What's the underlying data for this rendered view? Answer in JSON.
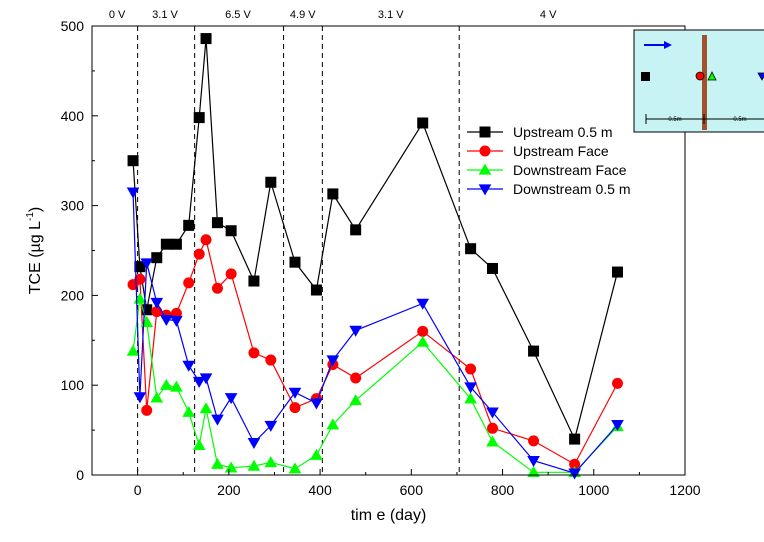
{
  "chart_data": {
    "type": "line",
    "title": "",
    "xlabel": "tim e (day)",
    "ylabel_main": "TCE (µg L",
    "ylabel_sup": "-1",
    "ylabel_tail": ")",
    "xlim": [
      -100,
      1200
    ],
    "ylim": [
      0,
      500
    ],
    "xticks": [
      "0",
      "200",
      "400",
      "600",
      "800",
      "1000",
      "1200"
    ],
    "yticks": [
      "0",
      "100",
      "200",
      "300",
      "400",
      "500"
    ],
    "grid": false,
    "legend_position": "right",
    "voltage_boundaries": [
      0,
      125,
      320,
      405,
      705
    ],
    "voltage_labels": [
      {
        "text": "0 V",
        "x": -45
      },
      {
        "text": "3.1 V",
        "x": 60
      },
      {
        "text": "6.5 V",
        "x": 220
      },
      {
        "text": "4.9 V",
        "x": 362
      },
      {
        "text": "3.1 V",
        "x": 555
      },
      {
        "text": "4 V",
        "x": 900
      }
    ],
    "series": [
      {
        "name": "Upstream 0.5 m",
        "color": "#000000",
        "marker": "square",
        "x": [
          -10,
          5,
          20,
          42,
          63,
          85,
          112,
          135,
          150,
          175,
          205,
          255,
          292,
          345,
          392,
          428,
          478,
          625,
          730,
          778,
          868,
          958,
          1052
        ],
        "y": [
          350,
          232,
          184,
          242,
          257,
          257,
          278,
          398,
          486,
          281,
          272,
          216,
          326,
          237,
          206,
          313,
          273,
          392,
          252,
          230,
          138,
          40,
          226
        ]
      },
      {
        "name": "Upstream Face",
        "color": "#ff0000",
        "marker": "circle",
        "x": [
          -10,
          5,
          20,
          42,
          63,
          85,
          112,
          135,
          150,
          175,
          205,
          255,
          292,
          345,
          392,
          428,
          478,
          625,
          730,
          778,
          868,
          958,
          1052
        ],
        "y": [
          212,
          218,
          72,
          182,
          178,
          180,
          214,
          246,
          262,
          208,
          224,
          136,
          128,
          75,
          85,
          123,
          108,
          160,
          118,
          52,
          38,
          12,
          102
        ]
      },
      {
        "name": "Downstream Face",
        "color": "#00ff00",
        "marker": "triangle-up",
        "x": [
          -10,
          5,
          20,
          42,
          63,
          85,
          112,
          135,
          150,
          175,
          205,
          255,
          292,
          345,
          392,
          428,
          478,
          625,
          730,
          778,
          868,
          958,
          1052
        ],
        "y": [
          138,
          196,
          170,
          86,
          100,
          98,
          70,
          33,
          74,
          12,
          8,
          10,
          14,
          7,
          22,
          56,
          83,
          148,
          85,
          37,
          3,
          3,
          54
        ]
      },
      {
        "name": "Downstream 0.5 m",
        "color": "#0000ff",
        "marker": "triangle-down",
        "x": [
          -10,
          5,
          20,
          42,
          63,
          85,
          112,
          135,
          150,
          175,
          205,
          255,
          292,
          345,
          392,
          428,
          478,
          625,
          730,
          778,
          868,
          958,
          1052
        ],
        "y": [
          315,
          87,
          236,
          192,
          173,
          172,
          122,
          104,
          108,
          62,
          86,
          36,
          55,
          92,
          80,
          128,
          161,
          191,
          98,
          70,
          16,
          2,
          56
        ]
      }
    ],
    "inset": {
      "background": "#c7f3f5",
      "pole_color": "#a0522d",
      "arrow_color": "#0000ff",
      "left_dim": "0.5m",
      "right_dim": "0.5m"
    }
  }
}
